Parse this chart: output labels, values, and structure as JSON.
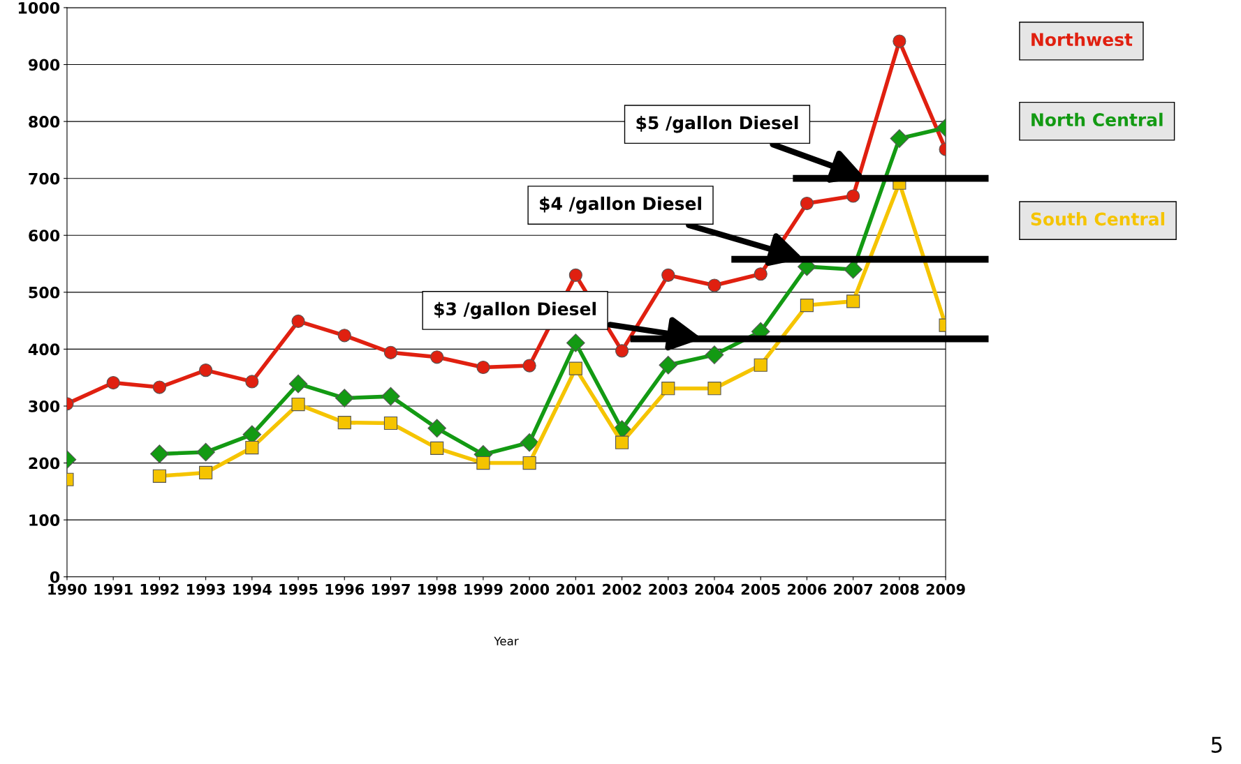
{
  "chart_data": {
    "type": "line",
    "xlabel": "Year",
    "x": [
      1990,
      1991,
      1992,
      1993,
      1994,
      1995,
      1996,
      1997,
      1998,
      1999,
      2000,
      2001,
      2002,
      2003,
      2004,
      2005,
      2006,
      2007,
      2008,
      2009
    ],
    "xlim": [
      1990,
      2009
    ],
    "xticks": [
      1990,
      1991,
      1992,
      1993,
      1994,
      1995,
      1996,
      1997,
      1998,
      1999,
      2000,
      2001,
      2002,
      2003,
      2004,
      2005,
      2006,
      2007,
      2008,
      2009
    ],
    "ylim": [
      0,
      1000
    ],
    "yticks": [
      0,
      100,
      200,
      300,
      400,
      500,
      600,
      700,
      800,
      900,
      1000
    ],
    "grid": "y",
    "legend": "right",
    "series": [
      {
        "name": "Northwest",
        "color": "#e02010",
        "marker": "circle",
        "values": [
          304,
          341,
          333,
          363,
          343,
          449,
          424,
          394,
          386,
          368,
          371,
          530,
          397,
          530,
          512,
          532,
          656,
          669,
          941,
          751
        ]
      },
      {
        "name": "North Central",
        "color": "#139a13",
        "marker": "diamond",
        "values": [
          206,
          null,
          216,
          219,
          250,
          339,
          314,
          317,
          261,
          215,
          236,
          411,
          259,
          372,
          390,
          431,
          545,
          540,
          770,
          789
        ]
      },
      {
        "name": "South Central",
        "color": "#f5c400",
        "marker": "square",
        "values": [
          171,
          null,
          177,
          183,
          227,
          303,
          271,
          270,
          226,
          200,
          200,
          366,
          236,
          331,
          331,
          372,
          477,
          484,
          692,
          442
        ]
      }
    ],
    "ref_lines": [
      {
        "axis": "y",
        "value": 700,
        "label": "$5 /gallon Diesel",
        "color": "#000000"
      },
      {
        "axis": "y",
        "value": 558,
        "label": "$4 /gallon Diesel",
        "color": "#000000"
      },
      {
        "axis": "y",
        "value": 418,
        "label": "$3 /gallon Diesel",
        "color": "#000000"
      }
    ],
    "annotations": [
      "5"
    ]
  }
}
